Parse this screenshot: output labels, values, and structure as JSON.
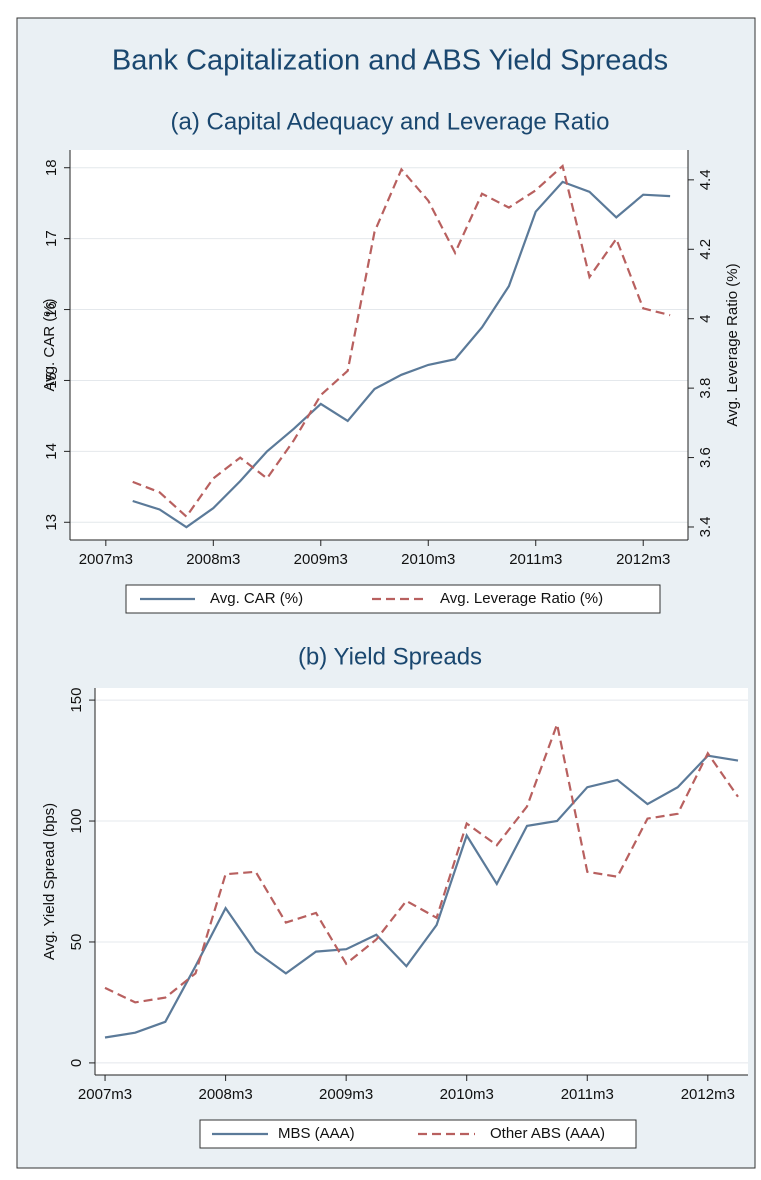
{
  "title": "Bank Capitalization and ABS Yield Spreads",
  "chart_data": [
    {
      "type": "line",
      "title": "(a) Capital Adequacy and Leverage Ratio",
      "x": [
        "2007m6",
        "2007m9",
        "2007m12",
        "2008m3",
        "2008m6",
        "2008m9",
        "2008m12",
        "2009m3",
        "2009m6",
        "2009m9",
        "2009m12",
        "2010m3",
        "2010m6",
        "2010m9",
        "2010m12",
        "2011m3",
        "2011m6",
        "2011m9",
        "2011m12",
        "2012m3",
        "2012m6"
      ],
      "xlim": [
        "2006m11",
        "2012m8"
      ],
      "xticks": [
        "2007m3",
        "2008m3",
        "2009m3",
        "2010m3",
        "2011m3",
        "2012m3"
      ],
      "ylabel": "Avg. CAR (%)",
      "ylim": [
        12.75,
        18.25
      ],
      "yticks": [
        13,
        14,
        15,
        16,
        17,
        18
      ],
      "y2label": "Avg. Leverage Ratio (%)",
      "y2lim": [
        3.3625,
        4.486
      ],
      "y2ticks": [
        3.4,
        3.6,
        3.8,
        4,
        4.2,
        4.4
      ],
      "grid": true,
      "series": [
        {
          "name": "Avg. CAR (%)",
          "color": "#5b7a99",
          "dashed": false,
          "values": [
            13.3,
            13.18,
            12.93,
            13.2,
            13.58,
            14.0,
            14.32,
            14.67,
            14.43,
            14.88,
            15.08,
            15.22,
            15.3,
            15.75,
            16.33,
            17.38,
            17.8,
            17.66,
            17.3,
            17.62,
            17.6
          ]
        },
        {
          "name": "Avg. Leverage Ratio (%)",
          "color": "#b8605f",
          "dashed": true,
          "axis": "y2",
          "values": [
            3.53,
            3.5,
            3.43,
            3.54,
            3.6,
            3.54,
            3.65,
            3.78,
            3.85,
            4.25,
            4.43,
            4.34,
            4.19,
            4.36,
            4.32,
            4.37,
            4.44,
            4.12,
            4.23,
            4.03,
            4.01
          ]
        }
      ]
    },
    {
      "type": "line",
      "title": "(b) Yield Spreads",
      "x": [
        "2007m3",
        "2007m6",
        "2007m9",
        "2007m12",
        "2008m3",
        "2008m6",
        "2008m9",
        "2008m12",
        "2009m3",
        "2009m6",
        "2009m9",
        "2009m12",
        "2010m3",
        "2010m6",
        "2010m9",
        "2010m12",
        "2011m3",
        "2011m6",
        "2011m9",
        "2011m12",
        "2012m3",
        "2012m6"
      ],
      "xlim": [
        "2007m2",
        "2012m7"
      ],
      "xticks": [
        "2007m3",
        "2008m3",
        "2009m3",
        "2010m3",
        "2011m3",
        "2012m3"
      ],
      "ylabel": "Avg. Yield Spread (bps)",
      "ylim": [
        -5,
        155
      ],
      "yticks": [
        0,
        50,
        100,
        150
      ],
      "grid": true,
      "series": [
        {
          "name": "MBS (AAA)",
          "color": "#5b7a99",
          "dashed": false,
          "values": [
            10.5,
            12.5,
            17,
            40,
            64,
            46,
            37,
            46,
            47,
            53,
            40,
            57,
            94,
            74,
            98,
            100,
            114,
            117,
            107,
            114,
            127,
            125
          ]
        },
        {
          "name": "Other ABS (AAA)",
          "color": "#b8605f",
          "dashed": true,
          "values": [
            31,
            25,
            27,
            37,
            78,
            79,
            58,
            62,
            41,
            51,
            67,
            60,
            99,
            90,
            106,
            140,
            79,
            77,
            101,
            103,
            128,
            110
          ]
        }
      ]
    }
  ]
}
